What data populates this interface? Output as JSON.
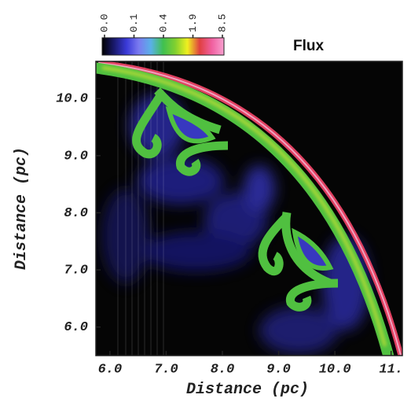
{
  "chart_data": {
    "type": "heatmap",
    "colorbar_title": "Flux",
    "xlabel": "Distance (pc)",
    "ylabel": "Distance (pc)",
    "xlim": [
      5.75,
      11.2
    ],
    "ylim": [
      5.5,
      10.65
    ],
    "xticks": [
      {
        "value": 6,
        "label": "6.0"
      },
      {
        "value": 7,
        "label": "7.0"
      },
      {
        "value": 8,
        "label": "8.0"
      },
      {
        "value": 9,
        "label": "9.0"
      },
      {
        "value": 10,
        "label": "10.0"
      },
      {
        "value": 11,
        "label": "11."
      }
    ],
    "yticks": [
      {
        "value": 6,
        "label": "6.0"
      },
      {
        "value": 7,
        "label": "7.0"
      },
      {
        "value": 8,
        "label": "8.0"
      },
      {
        "value": 9,
        "label": "9.0"
      },
      {
        "value": 10,
        "label": "10.0"
      }
    ],
    "colorbar_ticks": [
      {
        "value": 0,
        "label": "0.0"
      },
      {
        "value": 0.1,
        "label": "0.1"
      },
      {
        "value": 0.4,
        "label": "0.4"
      },
      {
        "value": 1.9,
        "label": "1.9"
      },
      {
        "value": 8.5,
        "label": "8.5"
      }
    ],
    "colormap": [
      "#000000",
      "#1a1a6e",
      "#3a3ad8",
      "#7a7af0",
      "#5ab0e8",
      "#40c050",
      "#80d030",
      "#f0f020",
      "#e04040",
      "#f060a0",
      "#f8a0d0"
    ]
  }
}
